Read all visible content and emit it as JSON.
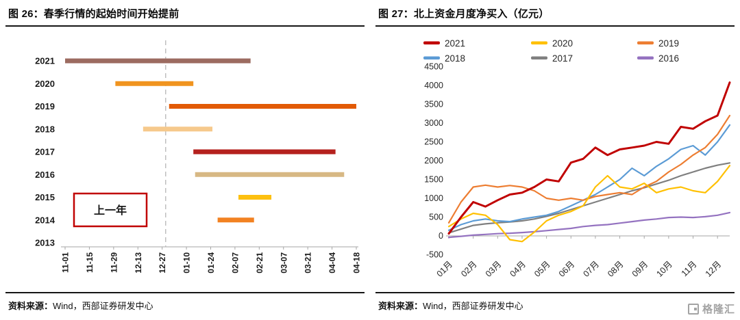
{
  "left_panel": {
    "title": "图 26：春季行情的起始时间开始提前",
    "source_label": "资料来源：",
    "source_value": "Wind，西部证券研发中心"
  },
  "right_panel": {
    "title": "图 27：北上资金月度净买入（亿元）",
    "source_label": "资料来源：",
    "source_value": "Wind，西部证券研发中心"
  },
  "footer": {
    "logo_text": "格隆汇"
  },
  "chart_data": [
    {
      "type": "bar",
      "variant": "horizontal-date-range",
      "title": "图 26：春季行情的起始时间开始提前",
      "y_categories": [
        "2021",
        "2020",
        "2019",
        "2018",
        "2017",
        "2016",
        "2015",
        "2014",
        "2013"
      ],
      "x_ticks": [
        "11-01",
        "11-15",
        "11-29",
        "12-13",
        "12-27",
        "01-10",
        "01-24",
        "02-07",
        "02-21",
        "03-07",
        "03-21",
        "04-04",
        "04-18"
      ],
      "x_range_days": 168,
      "dashed_line_date": "12-29",
      "annotation": {
        "text": "上一年",
        "border_color": "#C00000"
      },
      "bars": [
        {
          "year": "2021",
          "start": "11-01",
          "end": "02-16",
          "color": "#9C6B60"
        },
        {
          "year": "2020",
          "start": "11-30",
          "end": "01-14",
          "color": "#F0941F"
        },
        {
          "year": "2019",
          "start": "12-31",
          "end": "04-18",
          "color": "#E25A05"
        },
        {
          "year": "2018",
          "start": "12-16",
          "end": "01-25",
          "color": "#F6C98C"
        },
        {
          "year": "2017",
          "start": "01-14",
          "end": "04-06",
          "color": "#B5211E"
        },
        {
          "year": "2016",
          "start": "01-15",
          "end": "04-11",
          "color": "#D7B884"
        },
        {
          "year": "2015",
          "start": "02-09",
          "end": "02-28",
          "color": "#FDC010"
        },
        {
          "year": "2014",
          "start": "01-28",
          "end": "02-18",
          "color": "#F28222"
        }
      ]
    },
    {
      "type": "line",
      "title": "图 27：北上资金月度净买入（亿元）",
      "unit": "亿元",
      "x_tick_labels": [
        "01月",
        "02月",
        "03月",
        "04月",
        "05月",
        "06月",
        "07月",
        "08月",
        "09月",
        "10月",
        "11月",
        "12月"
      ],
      "ylim": [
        -500,
        4500
      ],
      "y_tick_step": 500,
      "points_per_month": 2,
      "legend_position": "top",
      "legend_rows": [
        [
          "2021",
          "2020",
          "2019"
        ],
        [
          "2018",
          "2017",
          "2016"
        ]
      ],
      "series": [
        {
          "name": "2021",
          "color": "#C00000",
          "width": 3,
          "values": [
            60,
            500,
            900,
            780,
            950,
            1100,
            1150,
            1300,
            1500,
            1450,
            1950,
            2050,
            2350,
            2150,
            2300,
            2350,
            2400,
            2500,
            2450,
            2900,
            2850,
            3050,
            3200,
            4080
          ]
        },
        {
          "name": "2020",
          "color": "#FFC000",
          "width": 2.2,
          "values": [
            250,
            450,
            600,
            550,
            300,
            -100,
            -150,
            100,
            400,
            550,
            650,
            800,
            1300,
            1600,
            1300,
            1250,
            1400,
            1150,
            1250,
            1300,
            1200,
            1150,
            1450,
            1870
          ]
        },
        {
          "name": "2019",
          "color": "#ED7D31",
          "width": 2.2,
          "values": [
            350,
            900,
            1300,
            1350,
            1300,
            1340,
            1300,
            1200,
            1000,
            950,
            1000,
            950,
            1050,
            1100,
            1150,
            1100,
            1300,
            1450,
            1700,
            1900,
            2150,
            2350,
            2700,
            3200
          ]
        },
        {
          "name": "2018",
          "color": "#5B9BD5",
          "width": 2.2,
          "values": [
            150,
            300,
            400,
            450,
            400,
            380,
            450,
            500,
            550,
            650,
            800,
            950,
            1100,
            1300,
            1500,
            1800,
            1600,
            1850,
            2050,
            2300,
            2400,
            2150,
            2500,
            2950
          ]
        },
        {
          "name": "2017",
          "color": "#7F7F7F",
          "width": 2.2,
          "values": [
            80,
            180,
            280,
            320,
            350,
            370,
            400,
            450,
            520,
            600,
            700,
            800,
            900,
            1000,
            1100,
            1200,
            1280,
            1380,
            1480,
            1600,
            1700,
            1800,
            1880,
            1940
          ]
        },
        {
          "name": "2016",
          "color": "#9472C0",
          "width": 2.2,
          "values": [
            -40,
            -10,
            20,
            40,
            60,
            70,
            90,
            110,
            140,
            170,
            200,
            250,
            280,
            300,
            340,
            380,
            420,
            450,
            490,
            500,
            490,
            510,
            550,
            620
          ]
        }
      ]
    }
  ]
}
